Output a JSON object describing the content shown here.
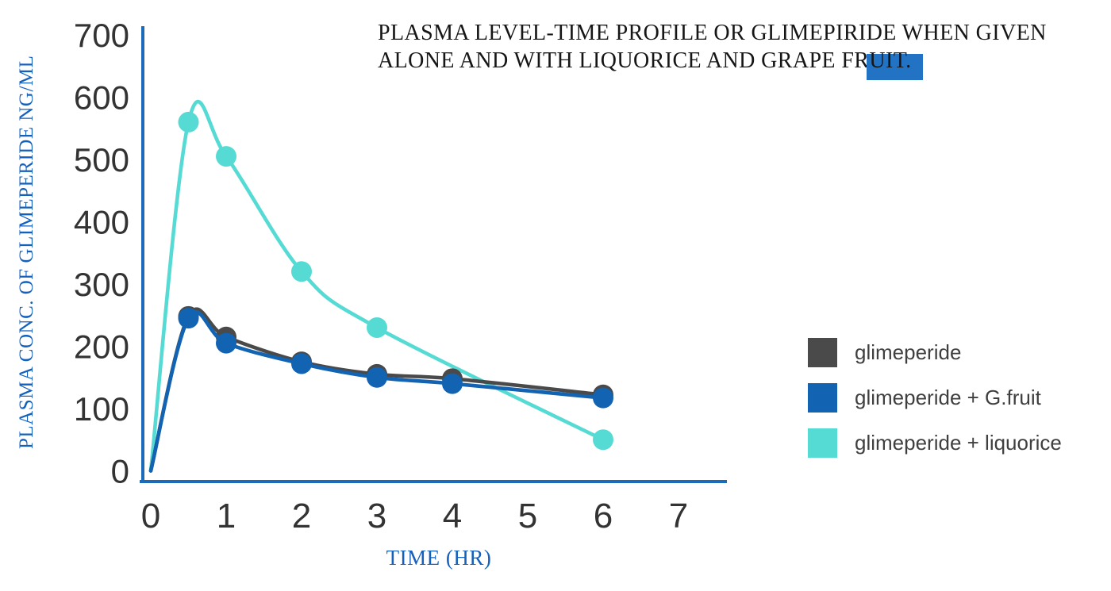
{
  "title": {
    "line1": "PLASMA LEVEL-TIME PROFILE OR GLIMEPIRIDE WHEN GIVEN",
    "line2_prefix": "ALONE AND WITH LIQUORICE AND GRAPE FR",
    "line2_highlight": "UIT."
  },
  "colors": {
    "axis": "#1c6ab8",
    "tick_text": "#333333",
    "blue_text": "#1460bd",
    "title_text": "#161616",
    "legend_text": "#3f3f3f",
    "highlight_rect": "#2373c5",
    "series_gray": "#4a4a4a",
    "series_blue": "#1263b2",
    "series_cyan": "#56dbd4"
  },
  "legend": {
    "items": [
      {
        "label": "glimeperide",
        "color": "#4a4a4a"
      },
      {
        "label": "glimeperide + G.fruit",
        "color": "#1263b2"
      },
      {
        "label": "glimeperide + liquorice",
        "color": "#56dbd4"
      }
    ]
  },
  "chart_data": {
    "type": "line",
    "title": "PLASMA LEVEL-TIME PROFILE OR GLIMEPIRIDE WHEN GIVEN ALONE AND WITH LIQUORICE AND GRAPE FRUIT.",
    "xlabel": "TIME (HR)",
    "ylabel": "PLASMA CONC. OF GLIMEPERIDE NG/ML",
    "xlim": [
      0,
      7.65
    ],
    "ylim": [
      0,
      700
    ],
    "x_ticks": [
      0,
      1,
      2,
      3,
      4,
      5,
      6,
      7
    ],
    "y_ticks": [
      0,
      100,
      200,
      300,
      400,
      500,
      600,
      700
    ],
    "grid": false,
    "legend_position": "right",
    "smooth": true,
    "series": [
      {
        "name": "glimeperide",
        "color": "#4a4a4a",
        "x": [
          0,
          0.5,
          1,
          2,
          3,
          4,
          6
        ],
        "y": [
          0,
          248,
          215,
          175,
          155,
          148,
          122
        ]
      },
      {
        "name": "glimeperide + G.fruit",
        "color": "#1263b2",
        "x": [
          0,
          0.5,
          1,
          2,
          3,
          4,
          6
        ],
        "y": [
          0,
          245,
          205,
          172,
          150,
          140,
          117
        ]
      },
      {
        "name": "glimeperide + liquorice",
        "color": "#56dbd4",
        "x": [
          0,
          0.5,
          1,
          2,
          3,
          6
        ],
        "y": [
          0,
          560,
          505,
          320,
          230,
          50
        ]
      }
    ]
  }
}
